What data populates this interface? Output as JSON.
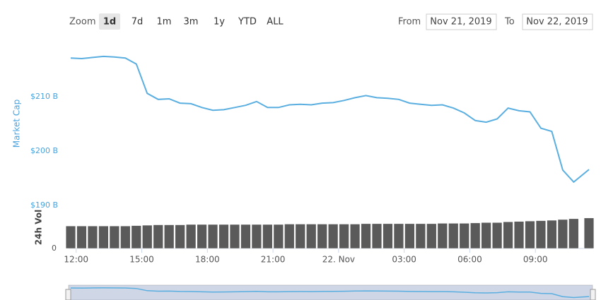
{
  "chart_data": {
    "type": "line-volume",
    "zoom": {
      "label": "Zoom",
      "buttons": [
        "1d",
        "7d",
        "1m",
        "3m",
        "1y",
        "YTD",
        "ALL"
      ],
      "selected": 0
    },
    "from_label": "From",
    "from": "Nov 21, 2019",
    "to_label": "To",
    "to": "Nov 22, 2019",
    "y_label": "Market Cap",
    "y2_label": "24h Vol",
    "x": [
      11.75,
      12.25,
      12.75,
      13.25,
      13.75,
      14.25,
      14.75,
      15.25,
      15.75,
      16.25,
      16.75,
      17.25,
      17.75,
      18.25,
      18.75,
      19.25,
      19.75,
      20.25,
      20.75,
      21.25,
      21.75,
      22.25,
      22.75,
      23.25,
      23.75,
      24.25,
      24.75,
      25.25,
      25.75,
      26.25,
      26.75,
      27.25,
      27.75,
      28.25,
      28.75,
      29.25,
      29.75,
      30.25,
      30.75,
      31.25,
      31.75,
      32.25,
      32.75,
      33.25,
      33.75,
      34.25,
      34.75,
      35.45
    ],
    "xlim": [
      11.75,
      35.45
    ],
    "xticks": [
      {
        "value": 12,
        "label": "12:00"
      },
      {
        "value": 15,
        "label": "15:00"
      },
      {
        "value": 18,
        "label": "18:00"
      },
      {
        "value": 21,
        "label": "21:00"
      },
      {
        "value": 24,
        "label": "22. Nov"
      },
      {
        "value": 27,
        "label": "03:00"
      },
      {
        "value": 30,
        "label": "06:00"
      },
      {
        "value": 33,
        "label": "09:00"
      }
    ],
    "ylim": [
      190,
      220.5
    ],
    "yticks": [
      {
        "value": 190,
        "label": "$190 B"
      },
      {
        "value": 200,
        "label": "$200 B"
      },
      {
        "value": 210,
        "label": "$210 B"
      }
    ],
    "y2lim": [
      0,
      100
    ],
    "y2ticks": [
      0
    ],
    "grid": false,
    "series": [
      {
        "name": "Market Cap",
        "color": "#5aafe0",
        "values": [
          217.1,
          217.0,
          217.2,
          217.4,
          217.3,
          217.1,
          216.0,
          210.6,
          209.5,
          209.6,
          208.8,
          208.7,
          208.0,
          207.5,
          207.6,
          208.0,
          208.4,
          209.1,
          208.0,
          208.0,
          208.5,
          208.6,
          208.5,
          208.8,
          208.9,
          209.3,
          209.8,
          210.2,
          209.8,
          209.7,
          209.5,
          208.8,
          208.6,
          208.4,
          208.5,
          207.9,
          207.0,
          205.6,
          205.3,
          205.9,
          207.9,
          207.4,
          207.2,
          204.2,
          203.6,
          196.5,
          194.3,
          196.6
        ]
      },
      {
        "name": "24h Vol",
        "color": "#5a5a5a",
        "axis": "y2",
        "values": [
          59,
          59,
          59,
          59,
          59,
          59,
          60,
          61,
          62,
          62,
          62,
          63,
          63,
          63,
          63,
          63,
          63,
          63,
          63,
          63,
          64,
          64,
          64,
          64,
          64,
          64,
          64,
          65,
          65,
          65,
          65,
          65,
          65,
          65,
          66,
          66,
          66,
          67,
          68,
          68,
          70,
          71,
          72,
          73,
          74,
          76,
          78,
          80
        ]
      }
    ]
  }
}
